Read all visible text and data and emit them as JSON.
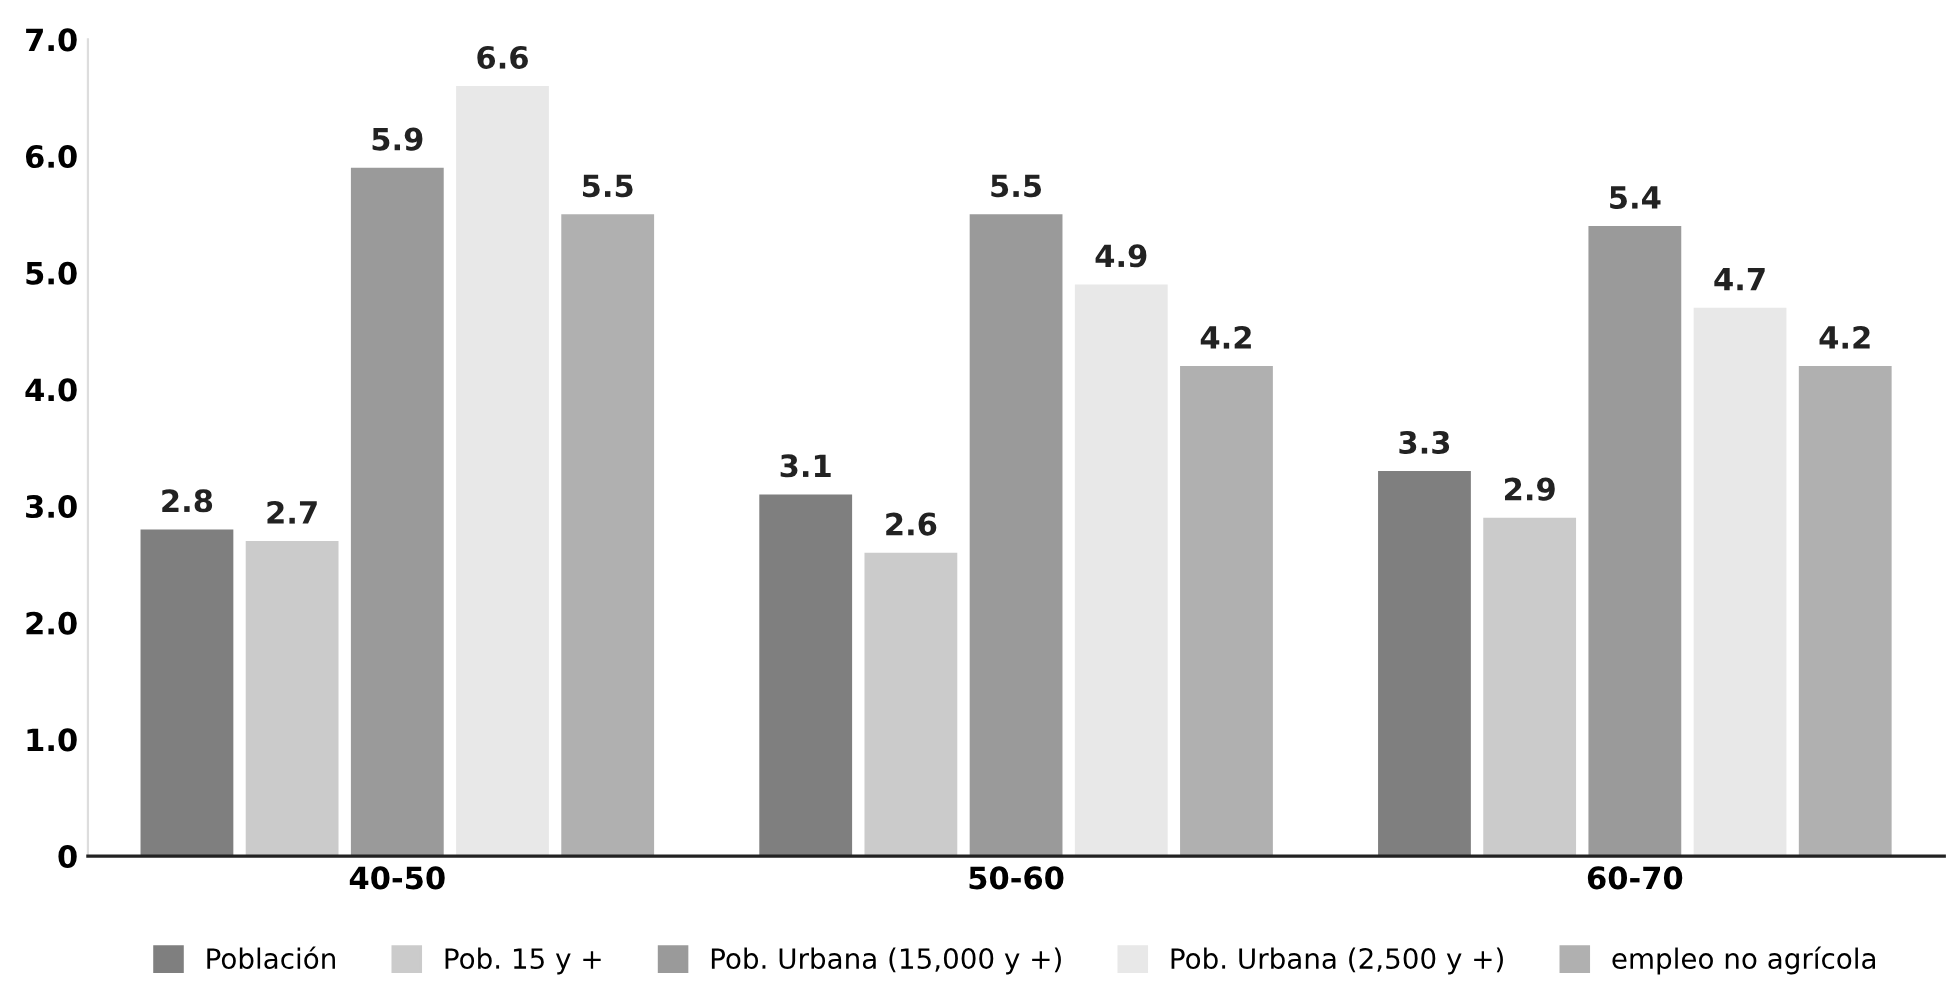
{
  "chart_data": {
    "type": "bar",
    "categories": [
      "40-50",
      "50-60",
      "60-70"
    ],
    "series": [
      {
        "name": "Población",
        "color": "#7f7f7f",
        "values": [
          2.8,
          3.1,
          3.3
        ]
      },
      {
        "name": "Pob. 15 y +",
        "color": "#cbcbcb",
        "values": [
          2.7,
          2.6,
          2.9
        ]
      },
      {
        "name": "Pob. Urbana (15,000 y +)",
        "color": "#9a9a9a",
        "values": [
          5.9,
          5.5,
          5.4
        ]
      },
      {
        "name": "Pob. Urbana (2,500 y +)",
        "color": "#e8e8e8",
        "values": [
          6.6,
          4.9,
          4.7
        ]
      },
      {
        "name": "empleo no agrícola",
        "color": "#b0b0b0",
        "values": [
          5.5,
          4.2,
          4.2
        ]
      }
    ],
    "ylim": [
      0,
      7
    ],
    "yticks": [
      0,
      {
        "value": 1,
        "label": "1.0"
      },
      {
        "value": 2,
        "label": "2.0"
      },
      {
        "value": 3,
        "label": "3.0"
      },
      {
        "value": 4,
        "label": "4.0"
      },
      {
        "value": 5,
        "label": "5.0"
      },
      {
        "value": 6,
        "label": "6.0"
      },
      {
        "value": 7,
        "label": "7.0"
      }
    ],
    "data_labels": true,
    "grid": false,
    "legend": "bottom"
  }
}
